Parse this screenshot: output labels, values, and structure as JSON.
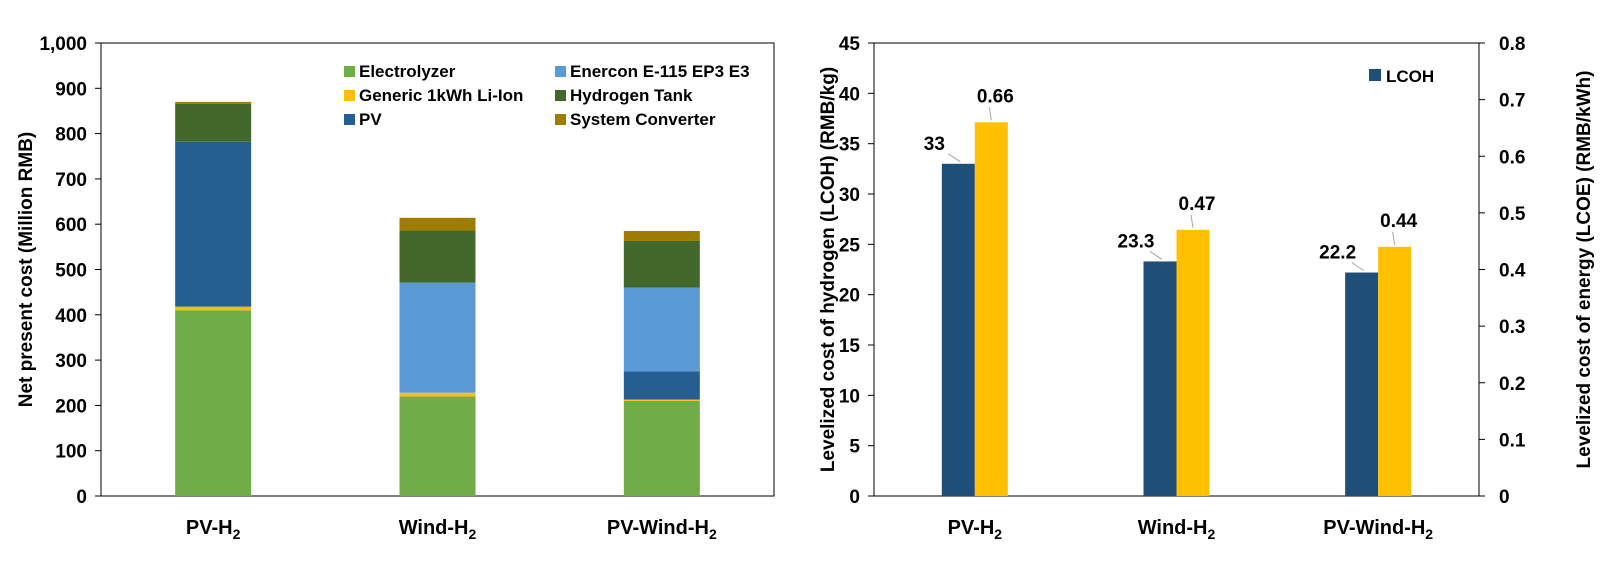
{
  "chart_data": [
    {
      "type": "bar",
      "stacked": true,
      "categories": [
        "PV-H2",
        "Wind-H2",
        "PV-Wind-H2"
      ],
      "category_display": [
        {
          "base": "PV-H",
          "sub": "2"
        },
        {
          "base": "Wind-H",
          "sub": "2"
        },
        {
          "base": "PV-Wind-H",
          "sub": "2"
        }
      ],
      "series": [
        {
          "name": "Electrolyzer",
          "color": "#70ad47",
          "values": [
            410,
            220,
            210
          ]
        },
        {
          "name": "Generic 1kWh Li-Ion",
          "color": "#ffc000",
          "values": [
            8,
            8,
            3
          ]
        },
        {
          "name": "PV",
          "color": "#255e91",
          "values": [
            364,
            0,
            62
          ]
        },
        {
          "name": "Enercon E-115 EP3 E3",
          "color": "#5b9bd5",
          "values": [
            0,
            243,
            185
          ]
        },
        {
          "name": "Hydrogen Tank",
          "color": "#43682b",
          "values": [
            84,
            115,
            103
          ]
        },
        {
          "name": "System Converter",
          "color": "#9e7c00",
          "values": [
            4,
            28,
            22
          ]
        }
      ],
      "legend_order": [
        "Electrolyzer",
        "Enercon E-115 EP3 E3",
        "Generic 1kWh Li-Ion",
        "Hydrogen Tank",
        "PV",
        "System Converter"
      ],
      "title": "",
      "xlabel": "",
      "ylabel": "Net present cost (Million RMB)",
      "ylim": [
        0,
        1000
      ],
      "yticks": [
        0,
        100,
        200,
        300,
        400,
        500,
        600,
        700,
        800,
        900,
        1000
      ],
      "ytick_labels": [
        "0",
        "100",
        "200",
        "300",
        "400",
        "500",
        "600",
        "700",
        "800",
        "900",
        "1,000"
      ],
      "grid": false,
      "legend_position": "top-right"
    },
    {
      "type": "bar",
      "categories": [
        "PV-H2",
        "Wind-H2",
        "PV-Wind-H2"
      ],
      "category_display": [
        {
          "base": "PV-H",
          "sub": "2"
        },
        {
          "base": "Wind-H",
          "sub": "2"
        },
        {
          "base": "PV-Wind-H",
          "sub": "2"
        }
      ],
      "series": [
        {
          "name": "LCOH",
          "axis": "left",
          "color": "#1f4e79",
          "values": [
            33,
            23.3,
            22.2
          ],
          "labels": [
            "33",
            "23.3",
            "22.2"
          ]
        },
        {
          "name": "LCOE",
          "axis": "right",
          "color": "#ffc000",
          "values": [
            0.66,
            0.47,
            0.44
          ],
          "labels": [
            "0.66",
            "0.47",
            "0.44"
          ]
        }
      ],
      "legend_entries": [
        "LCOH"
      ],
      "ylabel": "Levelized cost of hydrogen (LCOH) (RMB/kg)",
      "ylabel_right": "Levelized cost of energy (LCOE) (RMB/kWh)",
      "ylim": [
        0,
        45
      ],
      "ylim_right": [
        0,
        0.8
      ],
      "yticks": [
        0,
        5,
        10,
        15,
        20,
        25,
        30,
        35,
        40,
        45
      ],
      "ytick_labels": [
        "0",
        "5",
        "10",
        "15",
        "20",
        "25",
        "30",
        "35",
        "40",
        "45"
      ],
      "yticks_right": [
        0,
        0.1,
        0.2,
        0.3,
        0.4,
        0.5,
        0.6,
        0.7,
        0.8
      ],
      "ytick_labels_right": [
        "0",
        "0.1",
        "0.2",
        "0.3",
        "0.4",
        "0.5",
        "0.6",
        "0.7",
        "0.8"
      ],
      "grid": false,
      "legend_position": "top-right"
    }
  ]
}
